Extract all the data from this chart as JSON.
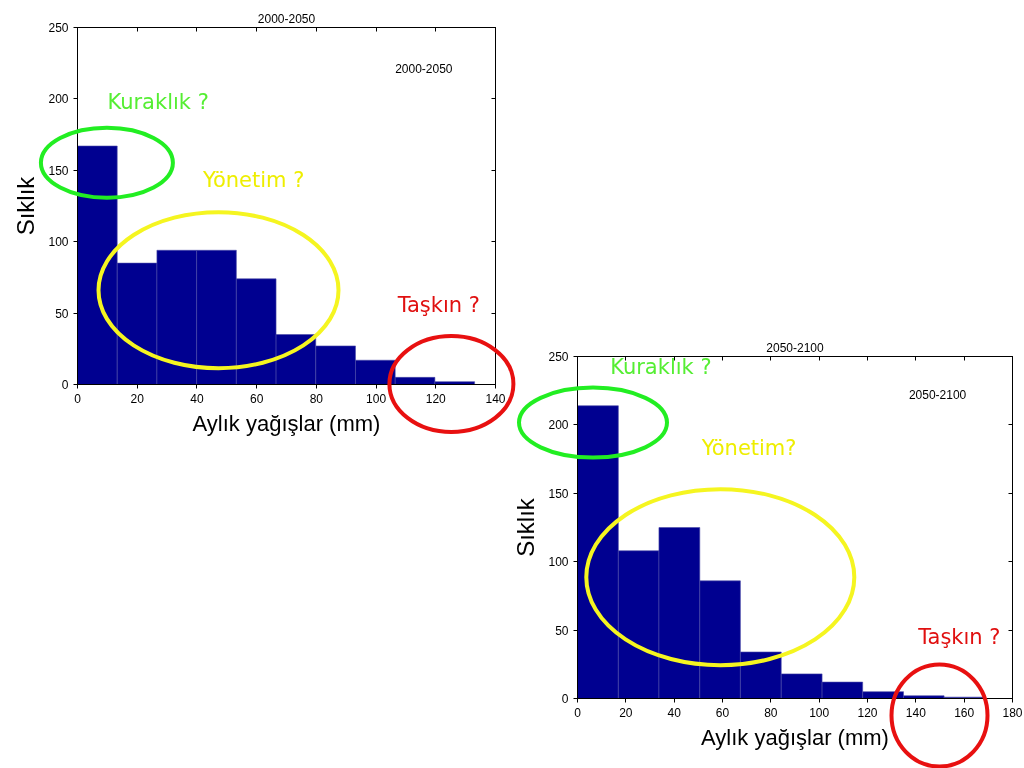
{
  "chart_data": [
    {
      "type": "histogram",
      "title": "2000-2050",
      "xlabel": "Aylık yağışlar (mm)",
      "ylabel": "Sıklık",
      "bins": [
        0,
        13.3,
        26.6,
        39.9,
        53.2,
        66.5,
        79.8,
        93.1,
        106.4,
        119.7,
        133.0
      ],
      "values": [
        167,
        85,
        94,
        94,
        74,
        35,
        27,
        17,
        5,
        2
      ],
      "color": "#000090",
      "xlim": [
        0,
        140
      ],
      "ylim": [
        0,
        250
      ],
      "xticks": [
        0,
        20,
        40,
        60,
        80,
        100,
        120,
        140
      ],
      "yticks": [
        0,
        50,
        100,
        150,
        200,
        250
      ],
      "grid": false,
      "annotations": [
        "2000-2050",
        "Kuraklık ?",
        "Yönetim ?",
        "Taşkın ?"
      ]
    },
    {
      "type": "histogram",
      "title": "2050-2100",
      "xlabel": "Aylık yağışlar (mm)",
      "ylabel": "Sıklık",
      "bins": [
        0,
        16.9,
        33.7,
        50.6,
        67.4,
        84.3,
        101.2,
        118.0,
        134.9,
        151.7,
        168.6
      ],
      "values": [
        214,
        108,
        125,
        86,
        34,
        18,
        12,
        5,
        2,
        1
      ],
      "color": "#000090",
      "xlim": [
        0,
        180
      ],
      "ylim": [
        0,
        250
      ],
      "xticks": [
        0,
        20,
        40,
        60,
        80,
        100,
        120,
        140,
        160,
        180
      ],
      "yticks": [
        0,
        50,
        100,
        150,
        200,
        250
      ],
      "grid": false,
      "annotations": [
        "2050-2100",
        "Kuraklık ?",
        "Yönetim?",
        "Taşkın ?"
      ]
    }
  ]
}
